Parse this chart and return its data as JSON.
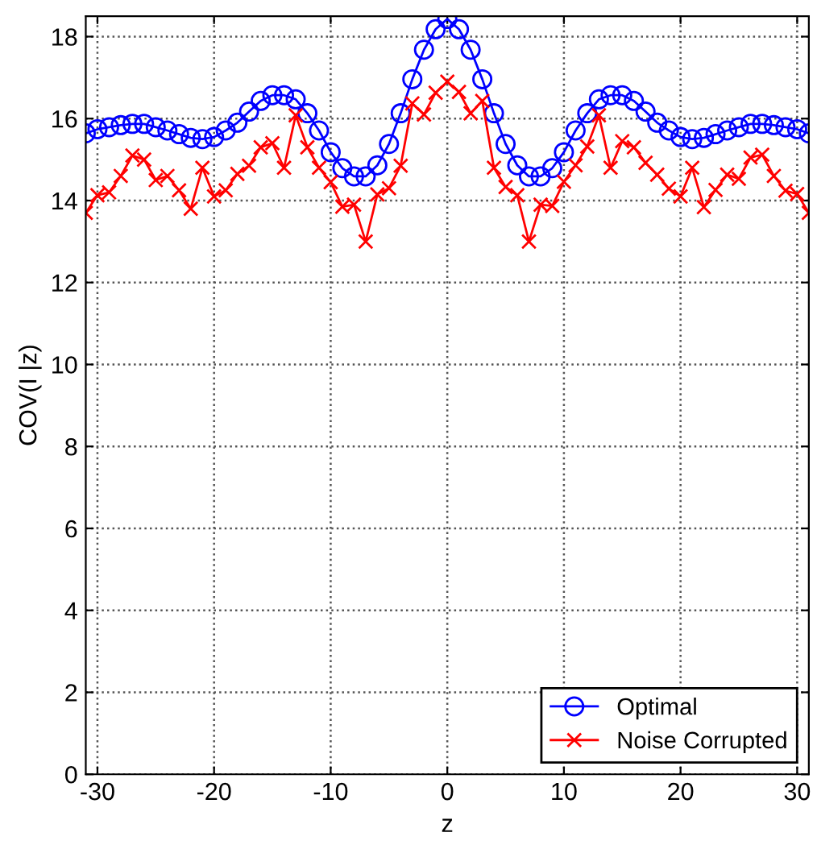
{
  "chart_data": {
    "type": "line",
    "xlabel": "z",
    "ylabel": "COV(I |z)",
    "x": [
      -31,
      -30,
      -29,
      -28,
      -27,
      -26,
      -25,
      -24,
      -23,
      -22,
      -21,
      -20,
      -19,
      -18,
      -17,
      -16,
      -15,
      -14,
      -13,
      -12,
      -11,
      -10,
      -9,
      -8,
      -7,
      -6,
      -5,
      -4,
      -3,
      -2,
      -1,
      0,
      1,
      2,
      3,
      4,
      5,
      6,
      7,
      8,
      9,
      10,
      11,
      12,
      13,
      14,
      15,
      16,
      17,
      18,
      19,
      20,
      21,
      22,
      23,
      24,
      25,
      26,
      27,
      28,
      29,
      30,
      31
    ],
    "series": [
      {
        "name": "Optimal",
        "color": "#0000ff",
        "marker": "circle",
        "values": [
          15.64,
          15.74,
          15.79,
          15.84,
          15.87,
          15.87,
          15.79,
          15.71,
          15.62,
          15.53,
          15.5,
          15.55,
          15.71,
          15.9,
          16.17,
          16.43,
          16.57,
          16.57,
          16.47,
          16.13,
          15.71,
          15.18,
          14.79,
          14.59,
          14.59,
          14.86,
          15.38,
          16.13,
          16.96,
          17.68,
          18.18,
          18.43,
          18.18,
          17.68,
          16.96,
          16.13,
          15.38,
          14.86,
          14.59,
          14.59,
          14.79,
          15.18,
          15.71,
          16.13,
          16.47,
          16.57,
          16.57,
          16.43,
          16.17,
          15.9,
          15.71,
          15.55,
          15.5,
          15.53,
          15.62,
          15.71,
          15.79,
          15.87,
          15.87,
          15.84,
          15.79,
          15.74,
          15.64
        ]
      },
      {
        "name": "Noise Corrupted",
        "color": "#ff0000",
        "marker": "cross",
        "values": [
          13.7,
          14.13,
          14.2,
          14.6,
          15.1,
          15.0,
          14.5,
          14.6,
          14.25,
          13.8,
          14.8,
          14.1,
          14.25,
          14.65,
          14.85,
          15.3,
          15.4,
          14.8,
          16.08,
          15.3,
          14.8,
          14.45,
          13.85,
          13.9,
          13.0,
          14.15,
          14.3,
          14.85,
          16.37,
          16.1,
          16.63,
          16.9,
          16.65,
          16.13,
          16.43,
          14.8,
          14.33,
          14.13,
          13.0,
          13.9,
          13.87,
          14.46,
          14.86,
          15.32,
          16.08,
          14.8,
          15.45,
          15.3,
          14.92,
          14.63,
          14.29,
          14.1,
          14.8,
          13.84,
          14.26,
          14.63,
          14.53,
          15.05,
          15.12,
          14.6,
          14.24,
          14.16,
          13.7
        ]
      }
    ],
    "xlim": [
      -31,
      31
    ],
    "ylim": [
      0,
      18.5
    ],
    "xticks": [
      -30,
      -20,
      -10,
      0,
      10,
      20,
      30
    ],
    "yticks": [
      0,
      2,
      4,
      6,
      8,
      10,
      12,
      14,
      16,
      18
    ],
    "grid": true,
    "legend": "bottom right",
    "line_style": "solid"
  }
}
